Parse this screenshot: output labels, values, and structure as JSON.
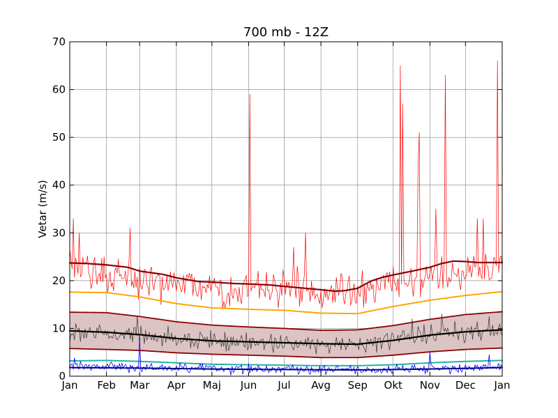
{
  "chart_data": {
    "type": "line",
    "title": "700 mb - 12Z",
    "xlabel": "",
    "ylabel": "Vetar (m/s)",
    "ylim": [
      0,
      70
    ],
    "xlim": [
      1,
      366
    ],
    "grid": true,
    "x_tick_labels": [
      "Jan",
      "Feb",
      "Mar",
      "Apr",
      "Maj",
      "Jun",
      "Jul",
      "Avg",
      "Sep",
      "Okt",
      "Nov",
      "Dec",
      "Jan"
    ],
    "x_tick_days": [
      1,
      32,
      60,
      91,
      121,
      152,
      182,
      213,
      244,
      274,
      305,
      335,
      366
    ],
    "y_ticks": [
      0,
      10,
      20,
      30,
      40,
      50,
      60,
      70
    ],
    "band": {
      "color": "#dcc4c4",
      "upper": "mean_plus_sd",
      "lower": "mean_minus_sd"
    },
    "series": [
      {
        "key": "daily_max",
        "color": "#ff0000",
        "width": 0.7,
        "anchors": [
          [
            1,
            23
          ],
          [
            30,
            21
          ],
          [
            60,
            20
          ],
          [
            100,
            19
          ],
          [
            152,
            18
          ],
          [
            182,
            18
          ],
          [
            213,
            17
          ],
          [
            244,
            18
          ],
          [
            274,
            20
          ],
          [
            305,
            21
          ],
          [
            335,
            22
          ],
          [
            366,
            23
          ]
        ],
        "amplitude": 5.5,
        "spikes": [
          [
            4,
            33
          ],
          [
            9,
            30
          ],
          [
            52,
            31
          ],
          [
            153,
            59
          ],
          [
            160,
            22
          ],
          [
            190,
            27
          ],
          [
            200,
            30
          ],
          [
            280,
            65
          ],
          [
            282,
            57
          ],
          [
            295,
            44
          ],
          [
            296,
            51
          ],
          [
            310,
            35
          ],
          [
            318,
            63
          ],
          [
            345,
            33
          ],
          [
            350,
            33
          ],
          [
            362,
            66
          ]
        ]
      },
      {
        "key": "max_smooth",
        "color": "#8b0000",
        "width": 2.2,
        "anchors": [
          [
            1,
            23.7
          ],
          [
            15,
            23.6
          ],
          [
            32,
            23.3
          ],
          [
            50,
            22.8
          ],
          [
            60,
            22.0
          ],
          [
            80,
            21.3
          ],
          [
            91,
            20.6
          ],
          [
            110,
            19.8
          ],
          [
            121,
            19.7
          ],
          [
            140,
            19.4
          ],
          [
            152,
            19.3
          ],
          [
            170,
            19.1
          ],
          [
            182,
            18.8
          ],
          [
            200,
            18.4
          ],
          [
            213,
            18.1
          ],
          [
            225,
            17.8
          ],
          [
            233,
            17.9
          ],
          [
            244,
            18.4
          ],
          [
            255,
            19.9
          ],
          [
            265,
            20.7
          ],
          [
            274,
            21.2
          ],
          [
            290,
            22.0
          ],
          [
            305,
            22.8
          ],
          [
            315,
            23.6
          ],
          [
            325,
            24.1
          ],
          [
            335,
            24.0
          ],
          [
            345,
            23.8
          ],
          [
            366,
            23.8
          ]
        ]
      },
      {
        "key": "p90",
        "color": "#ffa500",
        "width": 2.0,
        "anchors": [
          [
            1,
            17.6
          ],
          [
            32,
            17.5
          ],
          [
            60,
            16.6
          ],
          [
            91,
            15.2
          ],
          [
            121,
            14.3
          ],
          [
            152,
            14.0
          ],
          [
            182,
            13.8
          ],
          [
            213,
            13.2
          ],
          [
            244,
            13.1
          ],
          [
            274,
            14.6
          ],
          [
            305,
            15.9
          ],
          [
            335,
            16.9
          ],
          [
            366,
            17.7
          ]
        ]
      },
      {
        "key": "mean_plus_sd",
        "color": "#8b0000",
        "width": 1.8,
        "anchors": [
          [
            1,
            13.4
          ],
          [
            32,
            13.3
          ],
          [
            60,
            12.5
          ],
          [
            91,
            11.4
          ],
          [
            121,
            10.7
          ],
          [
            152,
            10.3
          ],
          [
            182,
            10.0
          ],
          [
            213,
            9.6
          ],
          [
            244,
            9.7
          ],
          [
            274,
            10.6
          ],
          [
            305,
            11.9
          ],
          [
            335,
            12.9
          ],
          [
            366,
            13.5
          ]
        ]
      },
      {
        "key": "daily_mean",
        "color": "#333333",
        "width": 0.7,
        "anchors": [
          [
            1,
            9.3
          ],
          [
            32,
            9.2
          ],
          [
            60,
            8.8
          ],
          [
            91,
            7.8
          ],
          [
            121,
            7.1
          ],
          [
            152,
            6.9
          ],
          [
            182,
            6.8
          ],
          [
            213,
            6.7
          ],
          [
            244,
            6.6
          ],
          [
            274,
            7.7
          ],
          [
            305,
            8.7
          ],
          [
            335,
            9.3
          ],
          [
            366,
            9.6
          ]
        ],
        "amplitude": 2.8,
        "spikes": [
          [
            58,
            12.5
          ],
          [
            290,
            12
          ],
          [
            315,
            13
          ],
          [
            355,
            12.5
          ]
        ]
      },
      {
        "key": "mean",
        "color": "#000000",
        "width": 2.2,
        "anchors": [
          [
            1,
            9.5
          ],
          [
            32,
            9.2
          ],
          [
            60,
            8.7
          ],
          [
            91,
            7.9
          ],
          [
            121,
            7.4
          ],
          [
            152,
            7.2
          ],
          [
            182,
            7.0
          ],
          [
            213,
            6.8
          ],
          [
            244,
            6.7
          ],
          [
            274,
            7.5
          ],
          [
            305,
            8.6
          ],
          [
            335,
            9.3
          ],
          [
            366,
            9.7
          ]
        ]
      },
      {
        "key": "mean_minus_sd",
        "color": "#8b0000",
        "width": 1.8,
        "anchors": [
          [
            1,
            5.8
          ],
          [
            32,
            5.6
          ],
          [
            60,
            5.4
          ],
          [
            91,
            4.9
          ],
          [
            121,
            4.6
          ],
          [
            152,
            4.4
          ],
          [
            182,
            4.2
          ],
          [
            213,
            3.9
          ],
          [
            244,
            3.9
          ],
          [
            274,
            4.4
          ],
          [
            305,
            5.1
          ],
          [
            335,
            5.6
          ],
          [
            366,
            5.9
          ]
        ]
      },
      {
        "key": "p10",
        "color": "#20b2aa",
        "width": 2.0,
        "anchors": [
          [
            1,
            3.2
          ],
          [
            32,
            3.3
          ],
          [
            60,
            3.1
          ],
          [
            91,
            2.8
          ],
          [
            121,
            2.5
          ],
          [
            152,
            2.4
          ],
          [
            182,
            2.3
          ],
          [
            213,
            2.2
          ],
          [
            244,
            2.2
          ],
          [
            274,
            2.4
          ],
          [
            305,
            2.8
          ],
          [
            335,
            3.1
          ],
          [
            366,
            3.3
          ]
        ]
      },
      {
        "key": "daily_min",
        "color": "#0000ff",
        "width": 0.8,
        "anchors": [
          [
            1,
            2.0
          ],
          [
            60,
            1.9
          ],
          [
            121,
            1.6
          ],
          [
            182,
            1.4
          ],
          [
            244,
            1.3
          ],
          [
            305,
            1.6
          ],
          [
            366,
            2.0
          ]
        ],
        "amplitude": 1.4,
        "spikes": [
          [
            60,
            8.0
          ],
          [
            305,
            5.0
          ],
          [
            355,
            4.5
          ],
          [
            5,
            3.8
          ]
        ]
      },
      {
        "key": "min_smooth",
        "color": "#00008b",
        "width": 2.0,
        "anchors": [
          [
            1,
            1.8
          ],
          [
            60,
            1.7
          ],
          [
            121,
            1.5
          ],
          [
            182,
            1.4
          ],
          [
            244,
            1.3
          ],
          [
            305,
            1.5
          ],
          [
            366,
            1.8
          ]
        ]
      }
    ]
  }
}
